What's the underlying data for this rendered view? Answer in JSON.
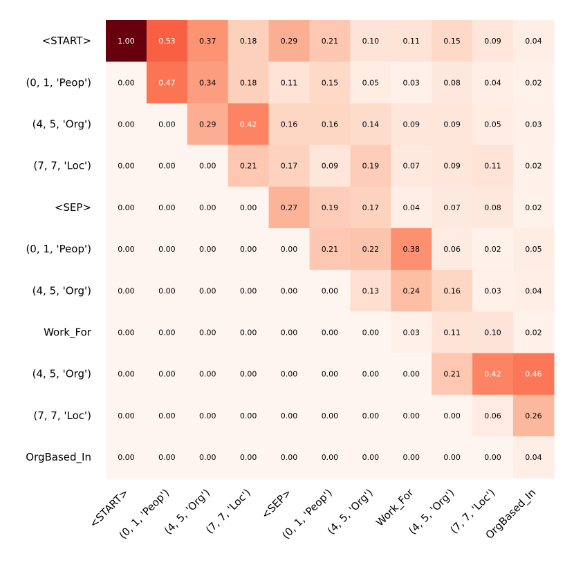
{
  "chart_data": {
    "type": "heatmap",
    "title": "",
    "xlabel": "",
    "ylabel": "",
    "color_scale": {
      "low": "#fff5f0",
      "mid": "#fb6a4a",
      "high": "#67000d",
      "min": 0,
      "max": 1
    },
    "row_labels": [
      "<START>",
      "(0, 1, 'Peop')",
      "(4, 5, 'Org')",
      "(7, 7, 'Loc')",
      "<SEP>",
      "(0, 1, 'Peop')",
      "(4, 5, 'Org')",
      "Work_For",
      "(4, 5, 'Org')",
      "(7, 7, 'Loc')",
      "OrgBased_In"
    ],
    "col_labels": [
      "<START>",
      "(0, 1, 'Peop')",
      "(4, 5, 'Org')",
      "(7, 7, 'Loc')",
      "<SEP>",
      "(0, 1, 'Peop')",
      "(4, 5, 'Org')",
      "Work_For",
      "(4, 5, 'Org')",
      "(7, 7, 'Loc')",
      "OrgBased_In"
    ],
    "values": [
      [
        1.0,
        0.53,
        0.37,
        0.18,
        0.29,
        0.21,
        0.1,
        0.11,
        0.15,
        0.09,
        0.04
      ],
      [
        0.0,
        0.47,
        0.34,
        0.18,
        0.11,
        0.15,
        0.05,
        0.03,
        0.08,
        0.04,
        0.02
      ],
      [
        0.0,
        0.0,
        0.29,
        0.42,
        0.16,
        0.16,
        0.14,
        0.09,
        0.09,
        0.05,
        0.03
      ],
      [
        0.0,
        0.0,
        0.0,
        0.21,
        0.17,
        0.09,
        0.19,
        0.07,
        0.09,
        0.11,
        0.02
      ],
      [
        0.0,
        0.0,
        0.0,
        0.0,
        0.27,
        0.19,
        0.17,
        0.04,
        0.07,
        0.08,
        0.02
      ],
      [
        0.0,
        0.0,
        0.0,
        0.0,
        0.0,
        0.21,
        0.22,
        0.38,
        0.06,
        0.02,
        0.05
      ],
      [
        0.0,
        0.0,
        0.0,
        0.0,
        0.0,
        0.0,
        0.13,
        0.24,
        0.16,
        0.03,
        0.04
      ],
      [
        0.0,
        0.0,
        0.0,
        0.0,
        0.0,
        0.0,
        0.0,
        0.03,
        0.11,
        0.1,
        0.02
      ],
      [
        0.0,
        0.0,
        0.0,
        0.0,
        0.0,
        0.0,
        0.0,
        0.0,
        0.21,
        0.42,
        0.46
      ],
      [
        0.0,
        0.0,
        0.0,
        0.0,
        0.0,
        0.0,
        0.0,
        0.0,
        0.0,
        0.06,
        0.26
      ],
      [
        0.0,
        0.0,
        0.0,
        0.0,
        0.0,
        0.0,
        0.0,
        0.0,
        0.0,
        0.0,
        0.04
      ]
    ],
    "value_format": "2 decimals",
    "grid": false,
    "legend": "none"
  }
}
